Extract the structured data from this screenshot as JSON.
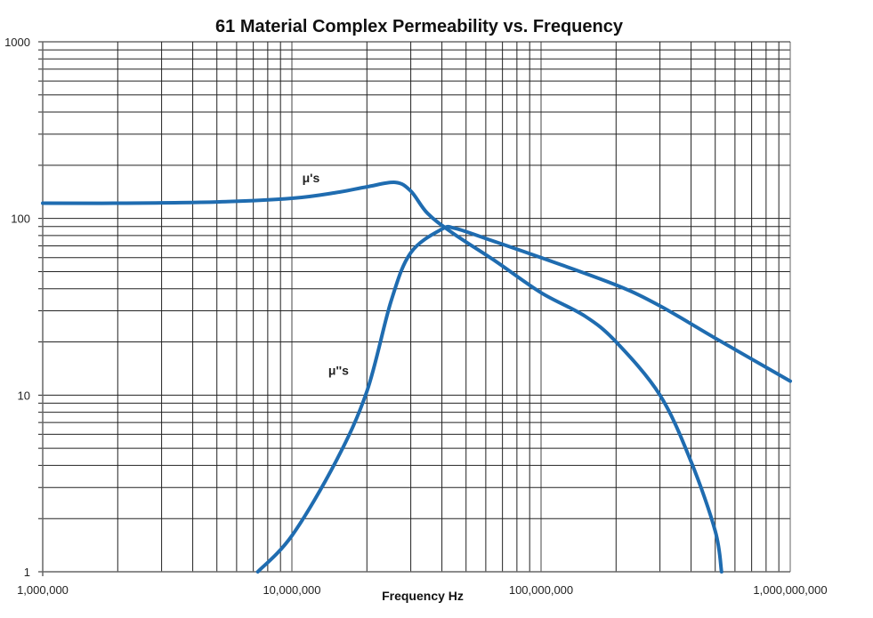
{
  "chart_data": {
    "type": "line",
    "title": "61 Material Complex Permeability vs. Frequency",
    "xlabel": "Frequency Hz",
    "ylabel": "",
    "xscale": "log",
    "yscale": "log",
    "xlim": [
      1000000,
      1000000000
    ],
    "ylim": [
      1,
      1000
    ],
    "grid": true,
    "x_ticks": [
      {
        "value": 1000000,
        "label": "1,000,000"
      },
      {
        "value": 10000000,
        "label": "10,000,000"
      },
      {
        "value": 100000000,
        "label": "100,000,000"
      },
      {
        "value": 1000000000,
        "label": "1,000,000,000"
      }
    ],
    "y_ticks": [
      {
        "value": 1,
        "label": "1"
      },
      {
        "value": 10,
        "label": "10"
      },
      {
        "value": 100,
        "label": "100"
      },
      {
        "value": 1000,
        "label": "1000"
      }
    ],
    "color": "#1f6cb0",
    "series": [
      {
        "name": "μ's",
        "label_at": [
          11000000,
          160
        ],
        "points": [
          [
            1000000,
            122
          ],
          [
            2000000,
            122
          ],
          [
            5000000,
            124
          ],
          [
            10000000,
            130
          ],
          [
            15000000,
            140
          ],
          [
            20000000,
            151
          ],
          [
            26000000,
            160
          ],
          [
            30000000,
            143
          ],
          [
            35000000,
            107
          ],
          [
            44000000,
            83
          ],
          [
            66000000,
            57
          ],
          [
            100000000,
            38
          ],
          [
            150000000,
            28
          ],
          [
            200000000,
            20
          ],
          [
            300000000,
            10
          ],
          [
            400000000,
            4.2
          ],
          [
            500000000,
            1.7
          ],
          [
            530000000,
            1
          ]
        ]
      },
      {
        "name": "μ''s",
        "label_at": [
          14000000,
          13
        ],
        "points": [
          [
            7300000,
            1
          ],
          [
            10000000,
            1.6
          ],
          [
            15000000,
            4.2
          ],
          [
            20000000,
            10.5
          ],
          [
            25000000,
            34
          ],
          [
            30000000,
            64
          ],
          [
            40000000,
            87
          ],
          [
            45000000,
            88
          ],
          [
            60000000,
            77
          ],
          [
            100000000,
            60
          ],
          [
            200000000,
            42
          ],
          [
            300000000,
            32
          ],
          [
            500000000,
            21
          ],
          [
            1000000000,
            12
          ]
        ]
      }
    ]
  }
}
